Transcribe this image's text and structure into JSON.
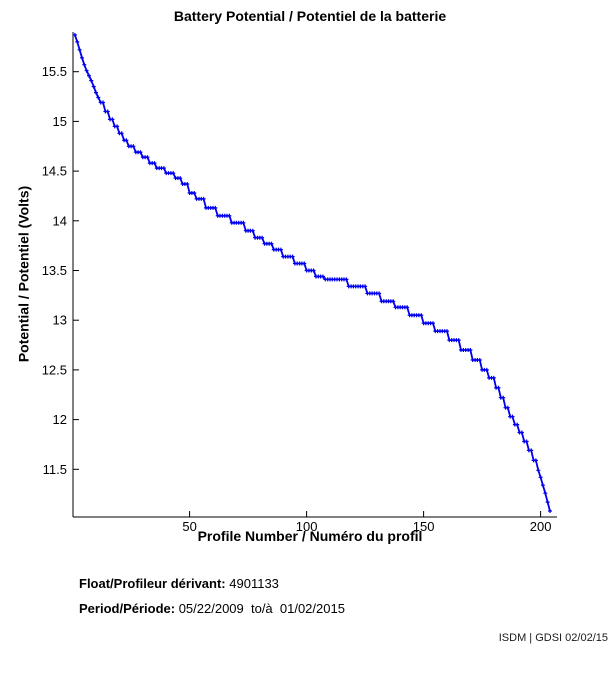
{
  "title": "Battery Potential / Potentiel de la batterie",
  "footer": {
    "float_label": "Float/Profileur dérivant:",
    "float_value": " 4901133",
    "period_label": "Period/Période:",
    "period_value": " 05/22/2009  to/à  01/02/2015",
    "stamp": "ISDM | GDSI 02/02/15"
  },
  "colors": {
    "line": "#0000EE",
    "axis": "#000000",
    "text": "#000000",
    "background": "#FFFFFF"
  },
  "chart_data": {
    "type": "line",
    "title": "Battery Potential / Potentiel de la batterie",
    "xlabel": "Profile Number / Numéro du profil",
    "ylabel": "Potential / Potentiel (Volts)",
    "xlim": [
      0,
      207
    ],
    "ylim": [
      11.0,
      15.95
    ],
    "x_ticks": [
      50,
      100,
      150,
      200
    ],
    "y_ticks": [
      11.5,
      12,
      12.5,
      13,
      13.5,
      14,
      14.5,
      15,
      15.5
    ],
    "grid": false,
    "legend": null,
    "marker": "plus",
    "series": [
      {
        "name": "battery-potential",
        "x_start": 1,
        "x_end": 204,
        "step_points_profile_volts": [
          [
            1,
            15.87
          ],
          [
            2,
            15.8
          ],
          [
            3,
            15.72
          ],
          [
            4,
            15.64
          ],
          [
            5,
            15.57
          ],
          [
            6,
            15.51
          ],
          [
            7,
            15.46
          ],
          [
            8,
            15.41
          ],
          [
            9,
            15.35
          ],
          [
            10,
            15.29
          ],
          [
            11,
            15.24
          ],
          [
            12,
            15.19
          ],
          [
            14,
            15.1
          ],
          [
            16,
            15.02
          ],
          [
            18,
            14.95
          ],
          [
            20,
            14.88
          ],
          [
            22,
            14.81
          ],
          [
            24,
            14.75
          ],
          [
            27,
            14.69
          ],
          [
            30,
            14.64
          ],
          [
            33,
            14.58
          ],
          [
            36,
            14.53
          ],
          [
            40,
            14.48
          ],
          [
            44,
            14.43
          ],
          [
            47,
            14.37
          ],
          [
            50,
            14.28
          ],
          [
            53,
            14.22
          ],
          [
            57,
            14.13
          ],
          [
            62,
            14.05
          ],
          [
            68,
            13.98
          ],
          [
            74,
            13.9
          ],
          [
            78,
            13.83
          ],
          [
            82,
            13.77
          ],
          [
            86,
            13.71
          ],
          [
            90,
            13.64
          ],
          [
            95,
            13.57
          ],
          [
            100,
            13.5
          ],
          [
            104,
            13.44
          ],
          [
            108,
            13.41
          ],
          [
            118,
            13.34
          ],
          [
            126,
            13.27
          ],
          [
            132,
            13.19
          ],
          [
            138,
            13.13
          ],
          [
            144,
            13.05
          ],
          [
            150,
            12.97
          ],
          [
            155,
            12.89
          ],
          [
            161,
            12.8
          ],
          [
            166,
            12.7
          ],
          [
            171,
            12.6
          ],
          [
            175,
            12.5
          ],
          [
            178,
            12.42
          ],
          [
            181,
            12.32
          ],
          [
            183,
            12.22
          ],
          [
            185,
            12.12
          ],
          [
            187,
            12.03
          ],
          [
            189,
            11.95
          ],
          [
            191,
            11.87
          ],
          [
            193,
            11.78
          ],
          [
            195,
            11.69
          ],
          [
            197,
            11.59
          ],
          [
            199,
            11.49
          ],
          [
            200,
            11.42
          ],
          [
            201,
            11.34
          ],
          [
            202,
            11.26
          ],
          [
            203,
            11.17
          ],
          [
            204,
            11.08
          ]
        ]
      }
    ]
  }
}
